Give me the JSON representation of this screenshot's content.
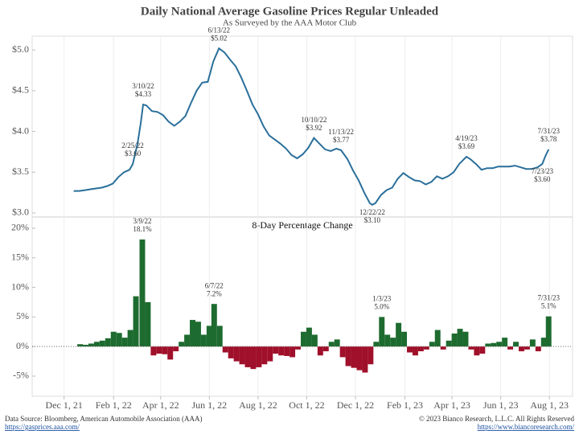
{
  "chart_data": [
    {
      "type": "line",
      "title": "Daily National Average Gasoline Prices Regular Unleaded",
      "subtitle": "As Surveyed by the AAA Motor Club",
      "xlim": [
        "2021-10-22",
        "2023-08-30"
      ],
      "ylim": [
        2.95,
        5.17
      ],
      "yticks": [
        {
          "value": 3,
          "label": "$3.0"
        },
        {
          "value": 3.5,
          "label": "$3.5"
        },
        {
          "value": 4,
          "label": "$4.0"
        },
        {
          "value": 4.5,
          "label": "$4.5"
        },
        {
          "value": 5,
          "label": "$5.0"
        }
      ],
      "grid": "x",
      "color": "#2a6f9a",
      "x": [
        "2021-12-13",
        "2021-12-20",
        "2021-12-27",
        "2022-01-03",
        "2022-01-10",
        "2022-01-17",
        "2022-01-24",
        "2022-01-31",
        "2022-02-07",
        "2022-02-14",
        "2022-02-21",
        "2022-02-25",
        "2022-03-03",
        "2022-03-07",
        "2022-03-10",
        "2022-03-14",
        "2022-03-21",
        "2022-03-28",
        "2022-04-04",
        "2022-04-11",
        "2022-04-18",
        "2022-04-25",
        "2022-05-02",
        "2022-05-09",
        "2022-05-16",
        "2022-05-23",
        "2022-05-30",
        "2022-06-06",
        "2022-06-13",
        "2022-06-20",
        "2022-06-27",
        "2022-07-04",
        "2022-07-11",
        "2022-07-18",
        "2022-07-25",
        "2022-08-01",
        "2022-08-08",
        "2022-08-15",
        "2022-08-22",
        "2022-08-29",
        "2022-09-05",
        "2022-09-12",
        "2022-09-19",
        "2022-09-26",
        "2022-10-03",
        "2022-10-10",
        "2022-10-17",
        "2022-10-24",
        "2022-10-31",
        "2022-11-07",
        "2022-11-13",
        "2022-11-21",
        "2022-11-28",
        "2022-12-05",
        "2022-12-12",
        "2022-12-19",
        "2022-12-22",
        "2022-12-26",
        "2023-01-02",
        "2023-01-09",
        "2023-01-16",
        "2023-01-23",
        "2023-01-30",
        "2023-02-06",
        "2023-02-13",
        "2023-02-20",
        "2023-02-27",
        "2023-03-06",
        "2023-03-13",
        "2023-03-20",
        "2023-03-27",
        "2023-04-03",
        "2023-04-10",
        "2023-04-19",
        "2023-04-24",
        "2023-05-01",
        "2023-05-08",
        "2023-05-15",
        "2023-05-22",
        "2023-05-29",
        "2023-06-05",
        "2023-06-12",
        "2023-06-19",
        "2023-06-26",
        "2023-07-03",
        "2023-07-10",
        "2023-07-17",
        "2023-07-23",
        "2023-07-27",
        "2023-07-31"
      ],
      "values": [
        3.27,
        3.27,
        3.28,
        3.29,
        3.3,
        3.31,
        3.33,
        3.36,
        3.44,
        3.5,
        3.53,
        3.6,
        3.85,
        4.1,
        4.33,
        4.32,
        4.25,
        4.24,
        4.2,
        4.12,
        4.07,
        4.12,
        4.19,
        4.35,
        4.5,
        4.6,
        4.61,
        4.86,
        5.02,
        4.97,
        4.88,
        4.8,
        4.66,
        4.5,
        4.33,
        4.21,
        4.06,
        3.95,
        3.9,
        3.85,
        3.79,
        3.71,
        3.67,
        3.72,
        3.8,
        3.92,
        3.85,
        3.78,
        3.76,
        3.79,
        3.77,
        3.66,
        3.52,
        3.4,
        3.25,
        3.12,
        3.1,
        3.12,
        3.22,
        3.28,
        3.31,
        3.42,
        3.49,
        3.44,
        3.4,
        3.39,
        3.35,
        3.38,
        3.45,
        3.42,
        3.45,
        3.5,
        3.6,
        3.69,
        3.66,
        3.6,
        3.53,
        3.55,
        3.55,
        3.57,
        3.57,
        3.57,
        3.58,
        3.56,
        3.54,
        3.54,
        3.56,
        3.6,
        3.7,
        3.78
      ],
      "annotations": [
        {
          "x": "2022-02-25",
          "y": 3.6,
          "date_label": "2/25/22",
          "value_label": "$3.60",
          "position": "above"
        },
        {
          "x": "2022-03-10",
          "y": 4.33,
          "date_label": "3/10/22",
          "value_label": "$4.33",
          "position": "above"
        },
        {
          "x": "2022-06-13",
          "y": 5.02,
          "date_label": "6/13/22",
          "value_label": "$5.02",
          "position": "above"
        },
        {
          "x": "2022-10-10",
          "y": 3.92,
          "date_label": "10/10/22",
          "value_label": "$3.92",
          "position": "above"
        },
        {
          "x": "2022-11-13",
          "y": 3.77,
          "date_label": "11/13/22",
          "value_label": "$3.77",
          "position": "above"
        },
        {
          "x": "2022-12-22",
          "y": 3.1,
          "date_label": "12/22/22",
          "value_label": "$3.10",
          "position": "below"
        },
        {
          "x": "2023-04-19",
          "y": 3.69,
          "date_label": "4/19/23",
          "value_label": "$3.69",
          "position": "above"
        },
        {
          "x": "2023-07-31",
          "y": 3.78,
          "date_label": "7/31/23",
          "value_label": "$3.78",
          "position": "above"
        },
        {
          "x": "2023-07-23",
          "y": 3.6,
          "date_label": "7/23/23",
          "value_label": "$3.60",
          "position": "below"
        }
      ]
    },
    {
      "type": "bar",
      "title": "8-Day Percentage Change",
      "xlim": [
        "2021-10-22",
        "2023-08-30"
      ],
      "ylim": [
        -8.4,
        21.9
      ],
      "yticks": [
        {
          "value": -5,
          "label": "-5%"
        },
        {
          "value": 0,
          "label": "0%"
        },
        {
          "value": 5,
          "label": "5%"
        },
        {
          "value": 10,
          "label": "10%"
        },
        {
          "value": 15,
          "label": "15%"
        },
        {
          "value": 20,
          "label": "20%"
        }
      ],
      "xticks": [
        {
          "value": "2021-12-01",
          "label": "Dec 1, 21"
        },
        {
          "value": "2022-02-01",
          "label": "Feb 1, 22"
        },
        {
          "value": "2022-04-01",
          "label": "Apr 1, 22"
        },
        {
          "value": "2022-06-01",
          "label": "Jun 1, 22"
        },
        {
          "value": "2022-08-01",
          "label": "Aug 1, 22"
        },
        {
          "value": "2022-10-01",
          "label": "Oct 1, 22"
        },
        {
          "value": "2022-12-01",
          "label": "Dec 1, 22"
        },
        {
          "value": "2023-02-01",
          "label": "Feb 1, 23"
        },
        {
          "value": "2023-04-01",
          "label": "Apr 1, 23"
        },
        {
          "value": "2023-06-01",
          "label": "Jun 1, 23"
        },
        {
          "value": "2023-08-01",
          "label": "Aug 1, 23"
        }
      ],
      "grid": "x",
      "positive_color": "#1e6b30",
      "negative_color": "#a0102a",
      "x": [
        "2021-12-21",
        "2021-12-28",
        "2022-01-04",
        "2022-01-11",
        "2022-01-18",
        "2022-01-25",
        "2022-02-01",
        "2022-02-08",
        "2022-02-15",
        "2022-02-22",
        "2022-03-01",
        "2022-03-09",
        "2022-03-16",
        "2022-03-23",
        "2022-03-30",
        "2022-04-06",
        "2022-04-13",
        "2022-04-20",
        "2022-04-27",
        "2022-05-04",
        "2022-05-11",
        "2022-05-18",
        "2022-05-25",
        "2022-06-01",
        "2022-06-07",
        "2022-06-14",
        "2022-06-21",
        "2022-06-28",
        "2022-07-05",
        "2022-07-12",
        "2022-07-19",
        "2022-07-26",
        "2022-08-02",
        "2022-08-09",
        "2022-08-16",
        "2022-08-23",
        "2022-08-30",
        "2022-09-06",
        "2022-09-13",
        "2022-09-20",
        "2022-09-27",
        "2022-10-04",
        "2022-10-11",
        "2022-10-18",
        "2022-10-25",
        "2022-11-01",
        "2022-11-08",
        "2022-11-15",
        "2022-11-22",
        "2022-11-29",
        "2022-12-06",
        "2022-12-13",
        "2022-12-20",
        "2022-12-27",
        "2023-01-03",
        "2023-01-10",
        "2023-01-17",
        "2023-01-24",
        "2023-01-31",
        "2023-02-07",
        "2023-02-14",
        "2023-02-21",
        "2023-02-28",
        "2023-03-07",
        "2023-03-14",
        "2023-03-21",
        "2023-03-28",
        "2023-04-04",
        "2023-04-11",
        "2023-04-18",
        "2023-04-25",
        "2023-05-02",
        "2023-05-09",
        "2023-05-16",
        "2023-05-23",
        "2023-05-30",
        "2023-06-06",
        "2023-06-13",
        "2023-06-20",
        "2023-06-27",
        "2023-07-04",
        "2023-07-11",
        "2023-07-18",
        "2023-07-25",
        "2023-07-31"
      ],
      "values": [
        0.4,
        0.3,
        0.5,
        0.8,
        1.0,
        1.4,
        2.5,
        2.3,
        1.5,
        2.8,
        8.5,
        18.1,
        7.5,
        -1.5,
        -1.2,
        -1.3,
        -2.2,
        -0.8,
        0.8,
        2.0,
        4.5,
        4.2,
        2.0,
        3.5,
        7.2,
        3.5,
        -1.0,
        -2.0,
        -2.5,
        -3.0,
        -3.5,
        -3.8,
        -3.5,
        -3.0,
        -2.5,
        -1.2,
        -1.5,
        -1.6,
        -1.8,
        -0.5,
        2.5,
        3.2,
        2.0,
        -1.5,
        -0.8,
        0.8,
        1.2,
        -1.8,
        -3.3,
        -3.6,
        -4.0,
        -4.4,
        -3.0,
        0.8,
        5.0,
        2.0,
        1.5,
        4.0,
        2.5,
        -1.0,
        -1.5,
        -0.8,
        -0.5,
        0.8,
        2.8,
        -0.5,
        1.0,
        2.2,
        3.0,
        2.5,
        -0.5,
        -1.5,
        -1.2,
        0.5,
        0.6,
        0.8,
        1.5,
        -0.5,
        0.8,
        -0.8,
        -0.5,
        1.2,
        -0.8,
        1.5,
        5.1
      ],
      "annotations": [
        {
          "x": "2022-03-09",
          "y": 18.1,
          "date_label": "3/9/22",
          "value_label": "18.1%",
          "position": "above"
        },
        {
          "x": "2022-06-07",
          "y": 7.2,
          "date_label": "6/7/22",
          "value_label": "7.2%",
          "position": "above"
        },
        {
          "x": "2023-01-03",
          "y": 5.0,
          "date_label": "1/3/23",
          "value_label": "5.0%",
          "position": "above"
        },
        {
          "x": "2023-07-31",
          "y": 5.1,
          "date_label": "7/31/23",
          "value_label": "5.1%",
          "position": "above"
        }
      ]
    }
  ],
  "footer": {
    "source": "Data Source: Bloomberg, American Automobile Association (AAA)",
    "source_link": "https://gasprices.aaa.com/",
    "copyright": "© 2023 Bianco Research, L.L.C. All Rights Reserved",
    "copyright_link": "https://www.biancoresearch.com/"
  }
}
